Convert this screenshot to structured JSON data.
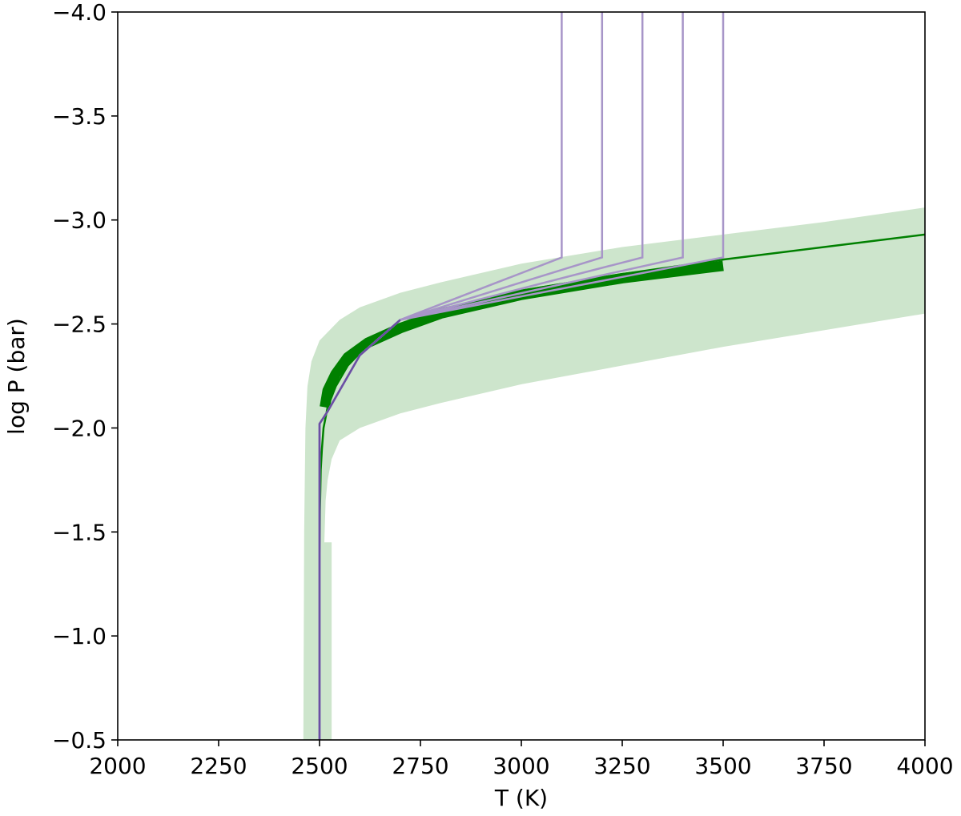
{
  "chart_data": {
    "type": "line",
    "title": "",
    "xlabel": "T (K)",
    "ylabel": "log P (bar)",
    "xlim": [
      2000,
      4000
    ],
    "ylim": [
      -0.5,
      -4.0
    ],
    "y_axis_inverted": true,
    "x_ticks": [
      2000,
      2250,
      2500,
      2750,
      3000,
      3250,
      3500,
      3750,
      4000
    ],
    "x_tick_labels": [
      "2000",
      "2250",
      "2500",
      "2750",
      "3000",
      "3250",
      "3500",
      "3750",
      "4000"
    ],
    "y_ticks": [
      -4.0,
      -3.5,
      -3.0,
      -2.5,
      -2.0,
      -1.5,
      -1.0,
      -0.5
    ],
    "y_tick_labels": [
      "−4.0",
      "−3.5",
      "−3.0",
      "−2.5",
      "−2.0",
      "−1.5",
      "−1.0",
      "−0.5"
    ],
    "grid": false,
    "legend": "none",
    "colors": {
      "band": "#cde5cc",
      "green": "#008000",
      "purple_light": "#a795c8",
      "purple_dark": "#6a4fa3"
    },
    "uncertainty_band": {
      "upper": [
        {
          "x": 2460,
          "y": -0.5
        },
        {
          "x": 2462,
          "y": -1.5
        },
        {
          "x": 2465,
          "y": -2.0
        },
        {
          "x": 2470,
          "y": -2.2
        },
        {
          "x": 2480,
          "y": -2.32
        },
        {
          "x": 2500,
          "y": -2.42
        },
        {
          "x": 2550,
          "y": -2.52
        },
        {
          "x": 2600,
          "y": -2.58
        },
        {
          "x": 2700,
          "y": -2.65
        },
        {
          "x": 2800,
          "y": -2.7
        },
        {
          "x": 3000,
          "y": -2.79
        },
        {
          "x": 3250,
          "y": -2.87
        },
        {
          "x": 3500,
          "y": -2.93
        },
        {
          "x": 3750,
          "y": -2.99
        },
        {
          "x": 4000,
          "y": -3.06
        }
      ],
      "lower": [
        {
          "x": 4000,
          "y": -2.55
        },
        {
          "x": 3750,
          "y": -2.47
        },
        {
          "x": 3500,
          "y": -2.39
        },
        {
          "x": 3250,
          "y": -2.3
        },
        {
          "x": 3000,
          "y": -2.21
        },
        {
          "x": 2800,
          "y": -2.12
        },
        {
          "x": 2700,
          "y": -2.07
        },
        {
          "x": 2600,
          "y": -2.0
        },
        {
          "x": 2550,
          "y": -1.94
        },
        {
          "x": 2530,
          "y": -1.85
        },
        {
          "x": 2520,
          "y": -1.75
        },
        {
          "x": 2515,
          "y": -1.65
        },
        {
          "x": 2512,
          "y": -1.45
        },
        {
          "x": 2530,
          "y": -1.45
        },
        {
          "x": 2530,
          "y": -0.5
        }
      ]
    },
    "median_profile": [
      {
        "x": 2500,
        "y": -0.5
      },
      {
        "x": 2500,
        "y": -1.2
      },
      {
        "x": 2501,
        "y": -1.6
      },
      {
        "x": 2503,
        "y": -1.8
      },
      {
        "x": 2506,
        "y": -1.9
      },
      {
        "x": 2510,
        "y": -2.0
      },
      {
        "x": 2520,
        "y": -2.1
      },
      {
        "x": 2540,
        "y": -2.2
      },
      {
        "x": 2570,
        "y": -2.3
      },
      {
        "x": 2620,
        "y": -2.4
      },
      {
        "x": 2700,
        "y": -2.5
      },
      {
        "x": 2800,
        "y": -2.56
      },
      {
        "x": 3000,
        "y": -2.66
      },
      {
        "x": 3250,
        "y": -2.74
      },
      {
        "x": 3500,
        "y": -2.81
      },
      {
        "x": 3750,
        "y": -2.87
      },
      {
        "x": 4000,
        "y": -2.93
      }
    ],
    "thick_segment": [
      {
        "x": 2513,
        "y": -2.1
      },
      {
        "x": 2520,
        "y": -2.18
      },
      {
        "x": 2540,
        "y": -2.26
      },
      {
        "x": 2570,
        "y": -2.34
      },
      {
        "x": 2620,
        "y": -2.41
      },
      {
        "x": 2700,
        "y": -2.48
      },
      {
        "x": 2800,
        "y": -2.55
      },
      {
        "x": 3000,
        "y": -2.64
      },
      {
        "x": 3250,
        "y": -2.72
      },
      {
        "x": 3500,
        "y": -2.78
      }
    ],
    "series": [
      {
        "values": [
          {
            "x": 2500,
            "y": -0.5
          },
          {
            "x": 2500,
            "y": -2.02
          },
          {
            "x": 2520,
            "y": -2.08
          },
          {
            "x": 2600,
            "y": -2.35
          },
          {
            "x": 2700,
            "y": -2.52
          },
          {
            "x": 3100,
            "y": -2.82
          },
          {
            "x": 3100,
            "y": -4.0
          }
        ]
      },
      {
        "values": [
          {
            "x": 2500,
            "y": -0.5
          },
          {
            "x": 2500,
            "y": -2.02
          },
          {
            "x": 2520,
            "y": -2.08
          },
          {
            "x": 2600,
            "y": -2.35
          },
          {
            "x": 2700,
            "y": -2.52
          },
          {
            "x": 3200,
            "y": -2.82
          },
          {
            "x": 3200,
            "y": -4.0
          }
        ]
      },
      {
        "values": [
          {
            "x": 2500,
            "y": -0.5
          },
          {
            "x": 2500,
            "y": -2.02
          },
          {
            "x": 2520,
            "y": -2.08
          },
          {
            "x": 2600,
            "y": -2.35
          },
          {
            "x": 2700,
            "y": -2.52
          },
          {
            "x": 3300,
            "y": -2.82
          },
          {
            "x": 3300,
            "y": -4.0
          }
        ]
      },
      {
        "values": [
          {
            "x": 2500,
            "y": -0.5
          },
          {
            "x": 2500,
            "y": -2.02
          },
          {
            "x": 2520,
            "y": -2.08
          },
          {
            "x": 2600,
            "y": -2.35
          },
          {
            "x": 2700,
            "y": -2.52
          },
          {
            "x": 3400,
            "y": -2.82
          },
          {
            "x": 3400,
            "y": -4.0
          }
        ]
      },
      {
        "values": [
          {
            "x": 2500,
            "y": -0.5
          },
          {
            "x": 2500,
            "y": -2.02
          },
          {
            "x": 2520,
            "y": -2.08
          },
          {
            "x": 2600,
            "y": -2.35
          },
          {
            "x": 2700,
            "y": -2.52
          },
          {
            "x": 3500,
            "y": -2.82
          },
          {
            "x": 3500,
            "y": -4.0
          }
        ]
      }
    ]
  }
}
